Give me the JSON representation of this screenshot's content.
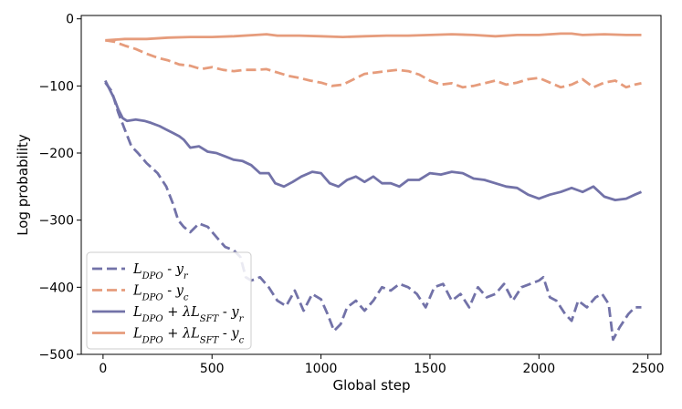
{
  "chart_data": {
    "type": "line",
    "xlabel": "Global step",
    "ylabel": "Log probability",
    "xlim": [
      -100,
      2560
    ],
    "ylim": [
      -500,
      5
    ],
    "xticks": [
      0,
      500,
      1000,
      1500,
      2000,
      2500
    ],
    "yticks": [
      0,
      -100,
      -200,
      -300,
      -400,
      -500
    ],
    "xtick_labels": [
      "0",
      "500",
      "1000",
      "1500",
      "2000",
      "2500"
    ],
    "ytick_labels": [
      "0",
      "−100",
      "−200",
      "−300",
      "−400",
      "−500"
    ],
    "grid": false,
    "legend_position": "lower-left",
    "colors": {
      "purple": "#7272a8",
      "orange": "#e69c7c"
    },
    "series": [
      {
        "name": "L_DPO - y_r",
        "style": "dashed",
        "color": "#7272a8",
        "points": [
          [
            10,
            -95
          ],
          [
            40,
            -108
          ],
          [
            70,
            -140
          ],
          [
            100,
            -165
          ],
          [
            130,
            -190
          ],
          [
            160,
            -200
          ],
          [
            200,
            -215
          ],
          [
            250,
            -230
          ],
          [
            290,
            -250
          ],
          [
            320,
            -275
          ],
          [
            345,
            -300
          ],
          [
            370,
            -310
          ],
          [
            400,
            -318
          ],
          [
            440,
            -305
          ],
          [
            480,
            -310
          ],
          [
            520,
            -325
          ],
          [
            560,
            -340
          ],
          [
            600,
            -345
          ],
          [
            630,
            -355
          ],
          [
            655,
            -385
          ],
          [
            680,
            -390
          ],
          [
            720,
            -385
          ],
          [
            760,
            -400
          ],
          [
            800,
            -420
          ],
          [
            840,
            -428
          ],
          [
            880,
            -405
          ],
          [
            920,
            -435
          ],
          [
            960,
            -410
          ],
          [
            1000,
            -418
          ],
          [
            1030,
            -440
          ],
          [
            1060,
            -465
          ],
          [
            1090,
            -455
          ],
          [
            1120,
            -430
          ],
          [
            1160,
            -420
          ],
          [
            1200,
            -435
          ],
          [
            1240,
            -420
          ],
          [
            1280,
            -400
          ],
          [
            1320,
            -405
          ],
          [
            1360,
            -395
          ],
          [
            1400,
            -400
          ],
          [
            1440,
            -410
          ],
          [
            1480,
            -430
          ],
          [
            1520,
            -400
          ],
          [
            1560,
            -395
          ],
          [
            1600,
            -420
          ],
          [
            1640,
            -410
          ],
          [
            1680,
            -430
          ],
          [
            1720,
            -400
          ],
          [
            1760,
            -415
          ],
          [
            1800,
            -410
          ],
          [
            1840,
            -395
          ],
          [
            1880,
            -420
          ],
          [
            1920,
            -400
          ],
          [
            1960,
            -395
          ],
          [
            2000,
            -390
          ],
          [
            2020,
            -385
          ],
          [
            2050,
            -415
          ],
          [
            2080,
            -420
          ],
          [
            2120,
            -440
          ],
          [
            2150,
            -450
          ],
          [
            2180,
            -420
          ],
          [
            2220,
            -430
          ],
          [
            2260,
            -415
          ],
          [
            2290,
            -410
          ],
          [
            2320,
            -425
          ],
          [
            2340,
            -478
          ],
          [
            2370,
            -460
          ],
          [
            2410,
            -440
          ],
          [
            2440,
            -430
          ],
          [
            2470,
            -430
          ]
        ]
      },
      {
        "name": "L_DPO - y_c",
        "style": "dashed",
        "color": "#e69c7c",
        "points": [
          [
            10,
            -32
          ],
          [
            50,
            -34
          ],
          [
            100,
            -40
          ],
          [
            150,
            -45
          ],
          [
            200,
            -52
          ],
          [
            250,
            -58
          ],
          [
            300,
            -62
          ],
          [
            350,
            -68
          ],
          [
            400,
            -70
          ],
          [
            450,
            -75
          ],
          [
            500,
            -72
          ],
          [
            550,
            -76
          ],
          [
            600,
            -78
          ],
          [
            650,
            -76
          ],
          [
            700,
            -76
          ],
          [
            750,
            -75
          ],
          [
            800,
            -80
          ],
          [
            850,
            -85
          ],
          [
            900,
            -88
          ],
          [
            950,
            -92
          ],
          [
            1000,
            -95
          ],
          [
            1050,
            -100
          ],
          [
            1100,
            -98
          ],
          [
            1150,
            -90
          ],
          [
            1200,
            -82
          ],
          [
            1250,
            -80
          ],
          [
            1300,
            -78
          ],
          [
            1350,
            -76
          ],
          [
            1400,
            -78
          ],
          [
            1450,
            -83
          ],
          [
            1500,
            -92
          ],
          [
            1550,
            -98
          ],
          [
            1600,
            -96
          ],
          [
            1650,
            -102
          ],
          [
            1700,
            -100
          ],
          [
            1750,
            -96
          ],
          [
            1800,
            -92
          ],
          [
            1850,
            -98
          ],
          [
            1900,
            -95
          ],
          [
            1950,
            -90
          ],
          [
            2000,
            -88
          ],
          [
            2050,
            -95
          ],
          [
            2100,
            -102
          ],
          [
            2150,
            -98
          ],
          [
            2200,
            -90
          ],
          [
            2250,
            -102
          ],
          [
            2300,
            -95
          ],
          [
            2350,
            -92
          ],
          [
            2400,
            -102
          ],
          [
            2440,
            -98
          ],
          [
            2470,
            -96
          ]
        ]
      },
      {
        "name": "L_DPO + λL_SFT - y_r",
        "style": "solid",
        "color": "#7272a8",
        "points": [
          [
            10,
            -92
          ],
          [
            30,
            -105
          ],
          [
            50,
            -118
          ],
          [
            70,
            -135
          ],
          [
            90,
            -148
          ],
          [
            110,
            -152
          ],
          [
            150,
            -150
          ],
          [
            190,
            -152
          ],
          [
            220,
            -155
          ],
          [
            260,
            -160
          ],
          [
            290,
            -165
          ],
          [
            320,
            -170
          ],
          [
            350,
            -175
          ],
          [
            370,
            -180
          ],
          [
            400,
            -192
          ],
          [
            440,
            -190
          ],
          [
            480,
            -198
          ],
          [
            520,
            -200
          ],
          [
            560,
            -205
          ],
          [
            600,
            -210
          ],
          [
            640,
            -212
          ],
          [
            680,
            -218
          ],
          [
            720,
            -230
          ],
          [
            760,
            -230
          ],
          [
            790,
            -245
          ],
          [
            830,
            -250
          ],
          [
            870,
            -243
          ],
          [
            910,
            -235
          ],
          [
            960,
            -228
          ],
          [
            1000,
            -230
          ],
          [
            1040,
            -245
          ],
          [
            1080,
            -250
          ],
          [
            1120,
            -240
          ],
          [
            1160,
            -235
          ],
          [
            1200,
            -243
          ],
          [
            1240,
            -235
          ],
          [
            1280,
            -245
          ],
          [
            1320,
            -245
          ],
          [
            1360,
            -250
          ],
          [
            1400,
            -240
          ],
          [
            1450,
            -240
          ],
          [
            1500,
            -230
          ],
          [
            1550,
            -232
          ],
          [
            1600,
            -228
          ],
          [
            1650,
            -230
          ],
          [
            1700,
            -238
          ],
          [
            1750,
            -240
          ],
          [
            1800,
            -245
          ],
          [
            1850,
            -250
          ],
          [
            1900,
            -252
          ],
          [
            1950,
            -262
          ],
          [
            2000,
            -268
          ],
          [
            2050,
            -262
          ],
          [
            2100,
            -258
          ],
          [
            2150,
            -252
          ],
          [
            2200,
            -258
          ],
          [
            2250,
            -250
          ],
          [
            2300,
            -265
          ],
          [
            2350,
            -270
          ],
          [
            2400,
            -268
          ],
          [
            2440,
            -262
          ],
          [
            2470,
            -258
          ]
        ]
      },
      {
        "name": "L_DPO + λL_SFT - y_c",
        "style": "solid",
        "color": "#e69c7c",
        "points": [
          [
            10,
            -32
          ],
          [
            100,
            -30
          ],
          [
            200,
            -30
          ],
          [
            300,
            -28
          ],
          [
            400,
            -27
          ],
          [
            500,
            -27
          ],
          [
            600,
            -26
          ],
          [
            700,
            -24
          ],
          [
            750,
            -23
          ],
          [
            800,
            -25
          ],
          [
            900,
            -25
          ],
          [
            1000,
            -26
          ],
          [
            1100,
            -27
          ],
          [
            1200,
            -26
          ],
          [
            1300,
            -25
          ],
          [
            1400,
            -25
          ],
          [
            1500,
            -24
          ],
          [
            1600,
            -23
          ],
          [
            1700,
            -24
          ],
          [
            1800,
            -26
          ],
          [
            1900,
            -24
          ],
          [
            2000,
            -24
          ],
          [
            2100,
            -22
          ],
          [
            2150,
            -22
          ],
          [
            2200,
            -24
          ],
          [
            2300,
            -23
          ],
          [
            2400,
            -24
          ],
          [
            2470,
            -24
          ]
        ]
      }
    ]
  },
  "legend": [
    {
      "main": "L",
      "sub": "DPO",
      "mid": "",
      "mid_sub": "",
      "tail": "y",
      "tail_sub": "r"
    },
    {
      "main": "L",
      "sub": "DPO",
      "mid": "",
      "mid_sub": "",
      "tail": "y",
      "tail_sub": "c"
    },
    {
      "main": "L",
      "sub": "DPO",
      "mid": "λL",
      "mid_sub": "SFT",
      "tail": "y",
      "tail_sub": "r"
    },
    {
      "main": "L",
      "sub": "DPO",
      "mid": "λL",
      "mid_sub": "SFT",
      "tail": "y",
      "tail_sub": "c"
    }
  ]
}
